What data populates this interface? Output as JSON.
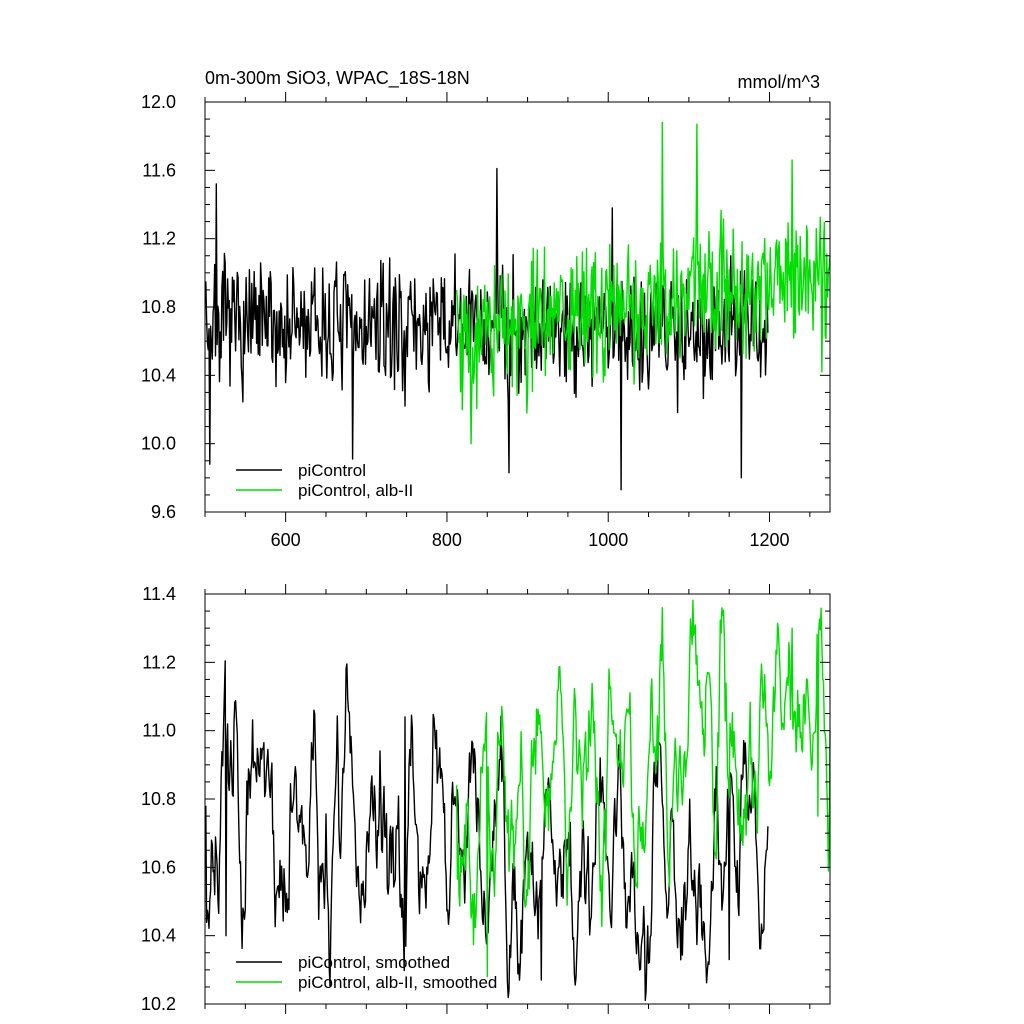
{
  "chart_data": [
    {
      "type": "line",
      "title": "0m-300m SiO3, WPAC_18S-18N",
      "units": "mmol/m^3",
      "xlim": [
        500,
        1275
      ],
      "ylim": [
        9.6,
        12.0
      ],
      "x_ticks": [
        600,
        800,
        1000,
        1200
      ],
      "x_tick_labels": [
        "600",
        "800",
        "1000",
        "1200"
      ],
      "y_ticks": [
        9.6,
        10.0,
        10.4,
        10.8,
        11.2,
        11.6,
        12.0
      ],
      "y_tick_labels": [
        "9.6",
        "10.0",
        "10.4",
        "10.8",
        "11.2",
        "11.6",
        "12.0"
      ],
      "legend_position": "bottom-left",
      "series": [
        {
          "name": "piControl",
          "color": "#000000",
          "x_start": 501,
          "x_step": 1,
          "base": 10.68,
          "amp": 0.26,
          "seed": 7,
          "smooth": 0,
          "anchors": [
            [
              501,
              10.95
            ],
            [
              506,
              9.88
            ],
            [
              514,
              11.52
            ],
            [
              683,
              9.91
            ],
            [
              862,
              11.61
            ],
            [
              877,
              9.83
            ],
            [
              1016,
              9.73
            ],
            [
              1005,
              11.38
            ],
            [
              1165,
              9.8
            ],
            [
              1198,
              10.65
            ]
          ]
        },
        {
          "name": "piControl, alb-II",
          "color": "#00dd00",
          "x_start": 812,
          "x_step": 1,
          "base": 10.62,
          "trend": 0.00085,
          "amp": 0.28,
          "seed": 19,
          "smooth": 0,
          "anchors": [
            [
              812,
              10.9
            ],
            [
              830,
              10.0
            ],
            [
              1067,
              11.88
            ],
            [
              1110,
              11.87
            ],
            [
              1228,
              11.66
            ],
            [
              1265,
              10.42
            ],
            [
              1275,
              11.1
            ]
          ]
        }
      ]
    },
    {
      "type": "line",
      "title": "",
      "xlim": [
        500,
        1275
      ],
      "ylim": [
        10.2,
        11.4
      ],
      "x_ticks": [
        600,
        800,
        1000,
        1200
      ],
      "x_tick_labels": [],
      "y_ticks": [
        10.2,
        10.4,
        10.6,
        10.8,
        11.0,
        11.2,
        11.4
      ],
      "y_tick_labels": [
        "10.2",
        "10.4",
        "10.6",
        "10.8",
        "11.0",
        "11.2",
        "11.4"
      ],
      "legend_position": "bottom-left",
      "series": [
        {
          "name": "piControl, smoothed",
          "color": "#000000",
          "x_start": 501,
          "x_step": 1,
          "base": 10.66,
          "amp": 0.38,
          "seed": 7,
          "smooth": 4,
          "anchors": [
            [
              501,
              10.78
            ],
            [
              512,
              10.52
            ],
            [
              526,
              10.4
            ],
            [
              635,
              11.06
            ],
            [
              648,
              10.48
            ],
            [
              748,
              11.04
            ],
            [
              890,
              10.27
            ],
            [
              917,
              10.27
            ],
            [
              990,
              10.92
            ],
            [
              1150,
              10.33
            ],
            [
              1198,
              10.72
            ]
          ]
        },
        {
          "name": "piControl, alb-II, smoothed",
          "color": "#00dd00",
          "x_start": 812,
          "x_step": 1,
          "base": 10.7,
          "trend": 0.00085,
          "amp": 0.4,
          "seed": 19,
          "smooth": 4,
          "anchors": [
            [
              812,
              10.84
            ],
            [
              832,
              10.52
            ],
            [
              850,
              10.28
            ],
            [
              1067,
              11.36
            ],
            [
              1228,
              11.3
            ],
            [
              1260,
              10.75
            ],
            [
              1275,
              11.0
            ]
          ]
        }
      ]
    }
  ]
}
